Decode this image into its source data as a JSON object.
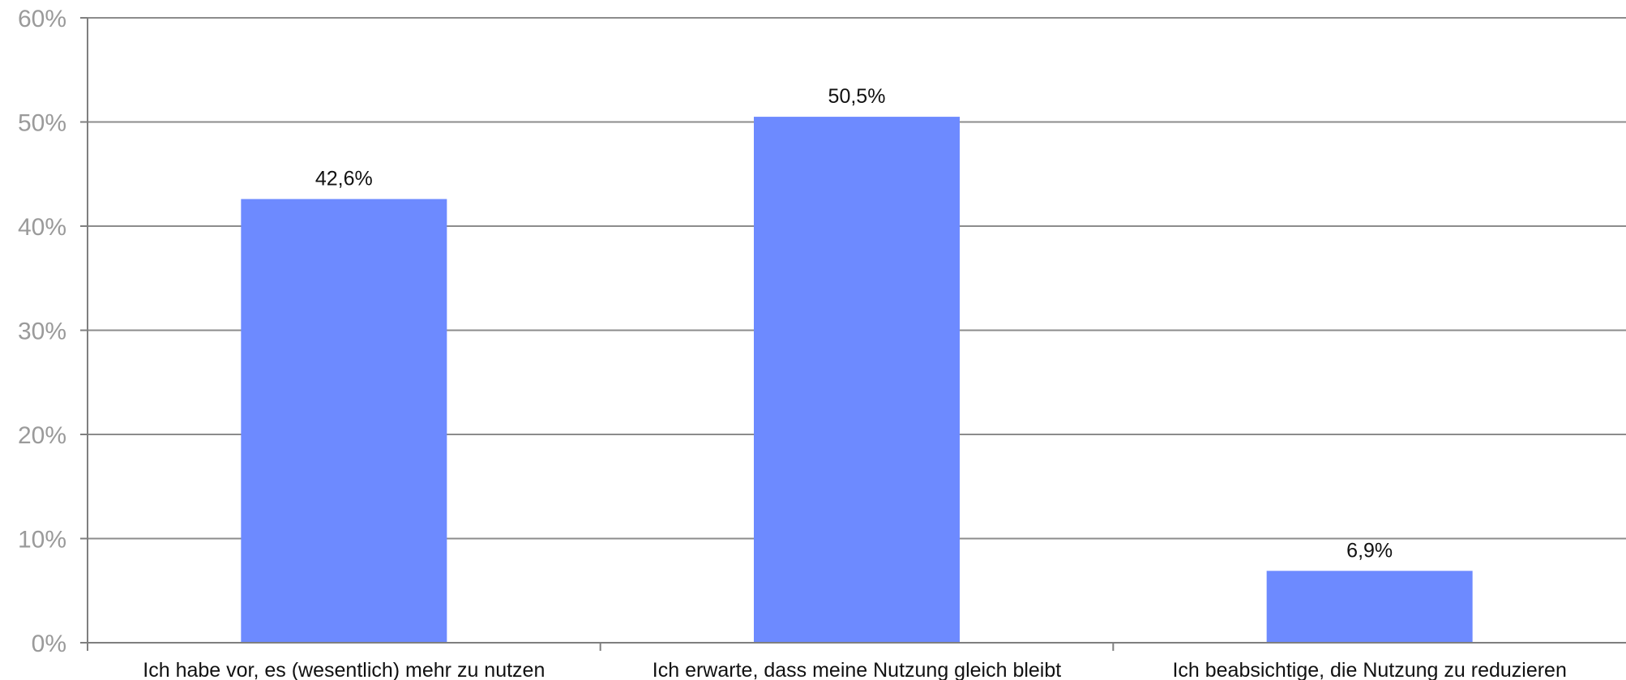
{
  "chart_data": {
    "type": "bar",
    "categories": [
      "Ich habe vor, es (wesentlich) mehr zu nutzen",
      "Ich erwarte, dass meine Nutzung gleich bleibt",
      "Ich beabsichtige, die Nutzung zu reduzieren"
    ],
    "values": [
      42.6,
      50.5,
      6.9
    ],
    "value_labels": [
      "42,6%",
      "50,5%",
      "6,9%"
    ],
    "ylim": [
      0,
      60
    ],
    "yticks": [
      0,
      10,
      20,
      30,
      40,
      50,
      60
    ],
    "ytick_labels": [
      "0%",
      "10%",
      "20%",
      "30%",
      "40%",
      "50%",
      "60%"
    ],
    "grid": true,
    "legend": "none",
    "title": "",
    "xlabel": "",
    "ylabel": "",
    "colors": {
      "bar": "#6d8aff",
      "grid": "#8c8c8c",
      "axis": "#7f7f7f"
    }
  }
}
